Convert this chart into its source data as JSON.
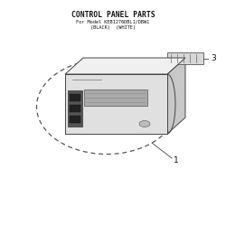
{
  "title_line1": "CONTROL PANEL PARTS",
  "title_line2": "For Model KEBI276DBL1/DBW1",
  "title_line3": "(BLACK)  (WHITE)",
  "bg_color": "#ffffff",
  "part_label_1": "1",
  "part_label_3": "3",
  "panel": {
    "front_color": "#e0e0e0",
    "top_color": "#f0f0f0",
    "right_color": "#c8c8c8",
    "edge_color": "#444444",
    "display_color": "#888888",
    "button_color": "#333333"
  }
}
